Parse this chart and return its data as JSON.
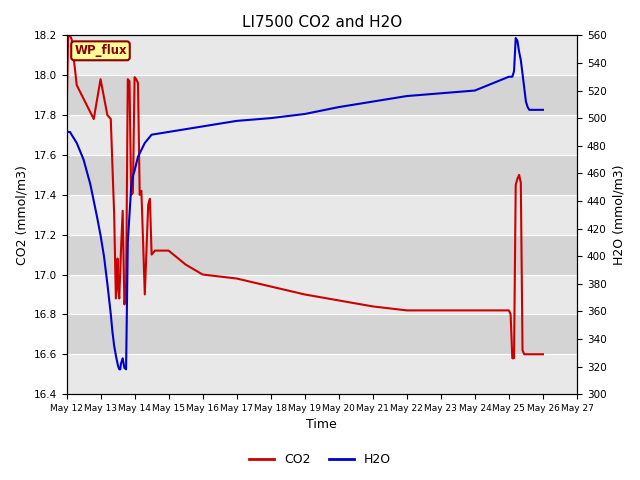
{
  "title": "LI7500 CO2 and H2O",
  "xlabel": "Time",
  "ylabel_left": "CO2 (mmol/m3)",
  "ylabel_right": "H2O (mmol/m3)",
  "co2_color": "#cc0000",
  "h2o_color": "#0000cc",
  "ylim_left": [
    16.4,
    18.2
  ],
  "ylim_right": [
    300,
    560
  ],
  "annotation_text": "WP_flux",
  "annotation_bg": "#ffff99",
  "annotation_border": "#8B0000",
  "co2_x": [
    12.0,
    12.05,
    12.15,
    12.3,
    12.8,
    13.0,
    13.2,
    13.3,
    13.4,
    13.45,
    13.5,
    13.52,
    13.55,
    13.6,
    13.65,
    13.7,
    13.75,
    13.8,
    13.85,
    13.9,
    13.95,
    14.0,
    14.05,
    14.1,
    14.15,
    14.2,
    14.3,
    14.4,
    14.45,
    14.5,
    14.6,
    15.0,
    15.5,
    16.0,
    17.0,
    18.0,
    19.0,
    20.0,
    21.0,
    22.0,
    23.0,
    24.0,
    25.0,
    25.05,
    25.1,
    25.15,
    25.2,
    25.25,
    25.3,
    25.35,
    25.4,
    25.45,
    25.5,
    25.55,
    26.0
  ],
  "co2_y": [
    17.78,
    18.22,
    18.18,
    17.95,
    17.78,
    17.98,
    17.8,
    17.78,
    17.3,
    16.88,
    17.08,
    16.93,
    16.88,
    17.12,
    17.32,
    16.85,
    16.92,
    17.98,
    17.97,
    17.4,
    17.41,
    17.99,
    17.98,
    17.96,
    17.4,
    17.42,
    16.9,
    17.35,
    17.38,
    17.1,
    17.12,
    17.12,
    17.05,
    17.0,
    16.98,
    16.94,
    16.9,
    16.87,
    16.84,
    16.82,
    16.82,
    16.82,
    16.82,
    16.8,
    16.58,
    16.58,
    17.45,
    17.48,
    17.5,
    17.46,
    16.62,
    16.6,
    16.6,
    16.6,
    16.6
  ],
  "h2o_x": [
    12.0,
    12.1,
    12.3,
    12.5,
    12.7,
    12.9,
    13.0,
    13.1,
    13.2,
    13.3,
    13.35,
    13.4,
    13.45,
    13.5,
    13.52,
    13.55,
    13.58,
    13.6,
    13.65,
    13.7,
    13.75,
    13.8,
    13.85,
    13.9,
    13.95,
    14.0,
    14.1,
    14.3,
    14.5,
    15.0,
    15.5,
    16.0,
    17.0,
    18.0,
    19.0,
    20.0,
    21.0,
    22.0,
    23.0,
    24.0,
    25.0,
    25.1,
    25.15,
    25.2,
    25.25,
    25.3,
    25.35,
    25.4,
    25.45,
    25.5,
    25.55,
    25.6,
    26.0
  ],
  "h2o_y": [
    490,
    490,
    482,
    470,
    452,
    428,
    415,
    400,
    380,
    358,
    345,
    335,
    328,
    322,
    320,
    318,
    318,
    322,
    326,
    319,
    318,
    410,
    430,
    450,
    458,
    462,
    472,
    482,
    488,
    490,
    492,
    494,
    498,
    500,
    503,
    508,
    512,
    516,
    518,
    520,
    530,
    530,
    534,
    558,
    556,
    548,
    542,
    532,
    522,
    512,
    508,
    506,
    506
  ],
  "xmin": 12,
  "xmax": 27,
  "xtick_labels": [
    "May 12",
    "May 13",
    "May 14",
    "May 15",
    "May 16",
    "May 17",
    "May 18",
    "May 19",
    "May 20",
    "May 21",
    "May 22",
    "May 23",
    "May 24",
    "May 25",
    "May 26",
    "May 27"
  ],
  "xtick_positions": [
    12,
    13,
    14,
    15,
    16,
    17,
    18,
    19,
    20,
    21,
    22,
    23,
    24,
    25,
    26,
    27
  ],
  "band_colors_left": [
    "#e8e8e8",
    "#d4d4d4"
  ],
  "yticks_left": [
    16.4,
    16.6,
    16.8,
    17.0,
    17.2,
    17.4,
    17.6,
    17.8,
    18.0,
    18.2
  ],
  "yticks_right": [
    300,
    320,
    340,
    360,
    380,
    400,
    420,
    440,
    460,
    480,
    500,
    520,
    540,
    560
  ],
  "figsize": [
    6.4,
    4.8
  ],
  "dpi": 100
}
